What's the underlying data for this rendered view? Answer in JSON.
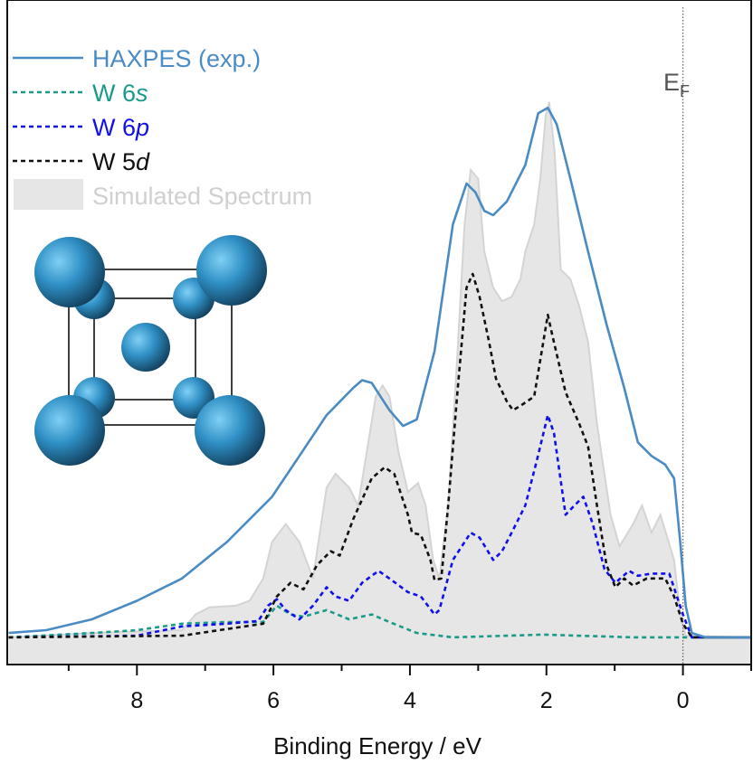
{
  "chart_data": {
    "type": "line",
    "title": "",
    "xlabel": "Binding Energy / eV",
    "ylabel": "",
    "xlim": [
      9.9,
      -1.0
    ],
    "x_reversed": true,
    "ylim": [
      -5,
      117
    ],
    "y_ticks_shown": false,
    "grid": false,
    "legend_position": "top-left",
    "x_ticks": [
      8,
      6,
      4,
      2,
      0
    ],
    "x_minor_ticks": [
      9,
      7,
      5,
      3,
      1,
      -1
    ],
    "annotation": {
      "text": "E",
      "subscript": "F",
      "x": 0,
      "line_style": "dotted",
      "color": "#555555"
    },
    "inset": "bcc crystal structure (W)",
    "series": [
      {
        "name": "Simulated Spectrum",
        "style": "filled",
        "color": "#e6e6e6",
        "edge_color": "#d4d4d4",
        "points": [
          [
            9.88,
            0
          ],
          [
            8.66,
            0.8
          ],
          [
            7.34,
            1.3
          ],
          [
            7.14,
            4.2
          ],
          [
            6.94,
            5.5
          ],
          [
            6.55,
            5.8
          ],
          [
            6.35,
            6.7
          ],
          [
            6.15,
            10.8
          ],
          [
            6.02,
            17.5
          ],
          [
            5.82,
            20.8
          ],
          [
            5.62,
            17.5
          ],
          [
            5.42,
            10.8
          ],
          [
            5.22,
            27.5
          ],
          [
            5.09,
            30
          ],
          [
            4.89,
            27.5
          ],
          [
            4.76,
            24.2
          ],
          [
            4.63,
            34.2
          ],
          [
            4.5,
            44.2
          ],
          [
            4.4,
            46.2
          ],
          [
            4.3,
            44.2
          ],
          [
            4.17,
            34.2
          ],
          [
            4.03,
            26.7
          ],
          [
            3.88,
            28.3
          ],
          [
            3.77,
            24.2
          ],
          [
            3.66,
            14.2
          ],
          [
            3.57,
            10.8
          ],
          [
            3.44,
            24.2
          ],
          [
            3.31,
            50.8
          ],
          [
            3.2,
            75.8
          ],
          [
            3.11,
            85.8
          ],
          [
            3.0,
            84.2
          ],
          [
            2.91,
            70.8
          ],
          [
            2.78,
            64.2
          ],
          [
            2.65,
            61.7
          ],
          [
            2.51,
            62.5
          ],
          [
            2.38,
            65.8
          ],
          [
            2.31,
            70.8
          ],
          [
            2.18,
            75.8
          ],
          [
            2.09,
            84.2
          ],
          [
            2.01,
            95.8
          ],
          [
            1.96,
            98.3
          ],
          [
            1.88,
            89.2
          ],
          [
            1.79,
            67.5
          ],
          [
            1.65,
            65.8
          ],
          [
            1.52,
            60.8
          ],
          [
            1.39,
            54.2
          ],
          [
            1.26,
            39.2
          ],
          [
            1.06,
            22.5
          ],
          [
            0.93,
            16.7
          ],
          [
            0.73,
            20.8
          ],
          [
            0.6,
            24.2
          ],
          [
            0.46,
            19.2
          ],
          [
            0.33,
            22.5
          ],
          [
            0.13,
            14.2
          ],
          [
            0.04,
            4.2
          ],
          [
            -0.04,
            0.3
          ],
          [
            -0.99,
            0
          ]
        ]
      },
      {
        "name": "HAXPES (exp.)",
        "style": "solid",
        "color": "#4a8bc4",
        "points": [
          [
            9.88,
            0.8
          ],
          [
            9.33,
            1.3
          ],
          [
            8.66,
            3.3
          ],
          [
            8.0,
            6.7
          ],
          [
            7.34,
            10.8
          ],
          [
            6.68,
            17.5
          ],
          [
            6.02,
            25.8
          ],
          [
            5.62,
            33.3
          ],
          [
            5.22,
            40.8
          ],
          [
            4.83,
            45.8
          ],
          [
            4.7,
            47.2
          ],
          [
            4.56,
            46.7
          ],
          [
            4.3,
            41.7
          ],
          [
            4.1,
            38.8
          ],
          [
            3.9,
            40
          ],
          [
            3.64,
            52.5
          ],
          [
            3.37,
            75.8
          ],
          [
            3.17,
            83.3
          ],
          [
            3.04,
            81.7
          ],
          [
            2.91,
            78.3
          ],
          [
            2.78,
            77.5
          ],
          [
            2.58,
            80
          ],
          [
            2.31,
            86.7
          ],
          [
            2.12,
            96.2
          ],
          [
            1.98,
            97.2
          ],
          [
            1.85,
            94.2
          ],
          [
            1.65,
            84.2
          ],
          [
            1.39,
            70.8
          ],
          [
            1.12,
            57.5
          ],
          [
            0.86,
            45.8
          ],
          [
            0.66,
            35.8
          ],
          [
            0.46,
            33.3
          ],
          [
            0.26,
            31.7
          ],
          [
            0.13,
            29.2
          ],
          [
            0.04,
            17.5
          ],
          [
            -0.04,
            5.8
          ],
          [
            -0.13,
            0.8
          ],
          [
            -0.33,
            0
          ],
          [
            -0.99,
            0
          ]
        ]
      },
      {
        "name": "W 6s",
        "style": "dashed",
        "color": "#1a9a8a",
        "points": [
          [
            9.88,
            0
          ],
          [
            8.66,
            0.8
          ],
          [
            8.0,
            1.3
          ],
          [
            7.34,
            2.5
          ],
          [
            6.68,
            2.8
          ],
          [
            6.15,
            2.8
          ],
          [
            5.95,
            5.8
          ],
          [
            5.75,
            4.2
          ],
          [
            5.56,
            3.8
          ],
          [
            5.22,
            5
          ],
          [
            4.89,
            3.3
          ],
          [
            4.56,
            4.2
          ],
          [
            4.3,
            2.8
          ],
          [
            3.9,
            0.8
          ],
          [
            3.37,
            0
          ],
          [
            2.05,
            0.5
          ],
          [
            0.73,
            0
          ],
          [
            -0.99,
            0
          ]
        ]
      },
      {
        "name": "W 6p",
        "style": "dashed",
        "color": "#1010e8",
        "points": [
          [
            9.88,
            0
          ],
          [
            8.0,
            0.3
          ],
          [
            7.34,
            2
          ],
          [
            6.68,
            2.5
          ],
          [
            6.22,
            3
          ],
          [
            6.08,
            5.8
          ],
          [
            5.95,
            7
          ],
          [
            5.82,
            5
          ],
          [
            5.62,
            3.3
          ],
          [
            5.42,
            5.8
          ],
          [
            5.22,
            9.2
          ],
          [
            5.09,
            7.5
          ],
          [
            4.89,
            6.7
          ],
          [
            4.7,
            10
          ],
          [
            4.46,
            12.2
          ],
          [
            4.3,
            10.8
          ],
          [
            4.03,
            8.3
          ],
          [
            3.84,
            7.5
          ],
          [
            3.64,
            4.2
          ],
          [
            3.57,
            5
          ],
          [
            3.37,
            14.2
          ],
          [
            3.11,
            19.2
          ],
          [
            2.98,
            18.3
          ],
          [
            2.78,
            14.2
          ],
          [
            2.65,
            15.8
          ],
          [
            2.51,
            19.2
          ],
          [
            2.31,
            24.2
          ],
          [
            2.14,
            32.5
          ],
          [
            1.98,
            40.8
          ],
          [
            1.89,
            37.5
          ],
          [
            1.72,
            22.5
          ],
          [
            1.59,
            24.2
          ],
          [
            1.46,
            25.8
          ],
          [
            1.32,
            20.8
          ],
          [
            1.15,
            12.5
          ],
          [
            0.99,
            10
          ],
          [
            0.79,
            12.2
          ],
          [
            0.66,
            11.3
          ],
          [
            0.46,
            11.7
          ],
          [
            0.2,
            11.7
          ],
          [
            0,
            4.2
          ],
          [
            -0.13,
            0
          ],
          [
            -0.99,
            0
          ]
        ]
      },
      {
        "name": "W 5d",
        "style": "dashed",
        "color": "#111111",
        "points": [
          [
            9.88,
            0
          ],
          [
            7.34,
            0.3
          ],
          [
            6.15,
            2.5
          ],
          [
            5.95,
            7.5
          ],
          [
            5.75,
            10
          ],
          [
            5.56,
            8.8
          ],
          [
            5.36,
            13.3
          ],
          [
            5.16,
            15.8
          ],
          [
            5.03,
            15
          ],
          [
            4.83,
            21.7
          ],
          [
            4.56,
            29.2
          ],
          [
            4.37,
            31.2
          ],
          [
            4.23,
            30
          ],
          [
            4.03,
            22.5
          ],
          [
            3.97,
            19.2
          ],
          [
            3.84,
            18.8
          ],
          [
            3.7,
            14.2
          ],
          [
            3.64,
            10.5
          ],
          [
            3.54,
            10.8
          ],
          [
            3.44,
            24.2
          ],
          [
            3.31,
            44.2
          ],
          [
            3.17,
            64.2
          ],
          [
            3.08,
            66.7
          ],
          [
            2.98,
            62.5
          ],
          [
            2.84,
            54.2
          ],
          [
            2.74,
            47.5
          ],
          [
            2.58,
            43.3
          ],
          [
            2.49,
            41.7
          ],
          [
            2.38,
            42.5
          ],
          [
            2.18,
            44.2
          ],
          [
            1.98,
            59.2
          ],
          [
            1.92,
            55.8
          ],
          [
            1.72,
            45
          ],
          [
            1.52,
            39.2
          ],
          [
            1.39,
            35
          ],
          [
            1.26,
            24.2
          ],
          [
            1.12,
            13.3
          ],
          [
            0.99,
            9.2
          ],
          [
            0.86,
            10.8
          ],
          [
            0.73,
            9.5
          ],
          [
            0.53,
            10.8
          ],
          [
            0.26,
            10.8
          ],
          [
            0.13,
            7.5
          ],
          [
            0,
            2.5
          ],
          [
            -0.13,
            0
          ],
          [
            -0.99,
            0
          ]
        ]
      }
    ]
  }
}
